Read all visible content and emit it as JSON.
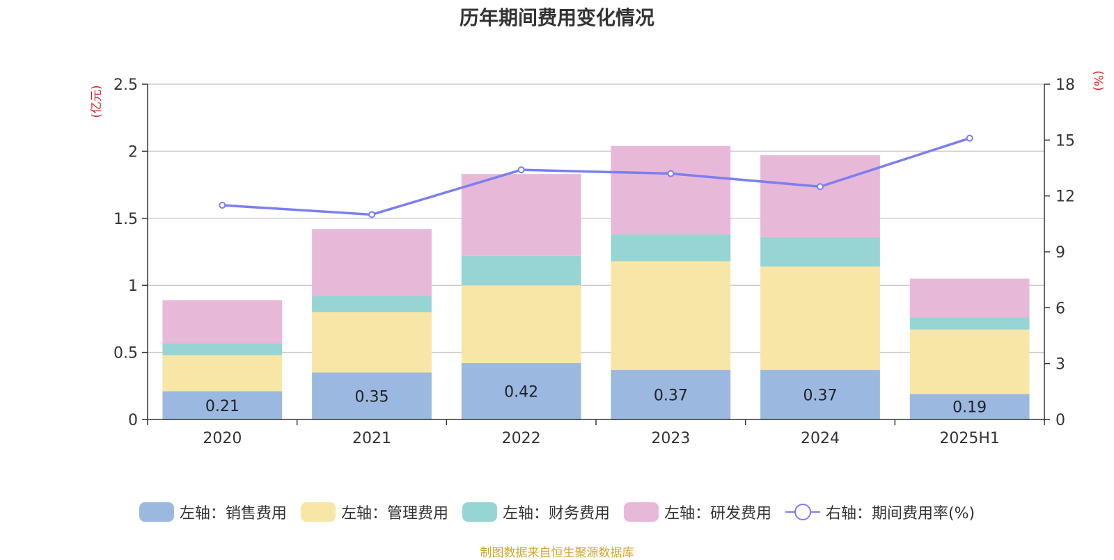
{
  "chart_data": {
    "type": "bar",
    "title": "历年期间费用变化情况",
    "categories": [
      "2020",
      "2021",
      "2022",
      "2023",
      "2024",
      "2025H1"
    ],
    "left_axis": {
      "label": "(亿元)",
      "ylim": [
        0,
        2.5
      ],
      "ticks": [
        "0",
        "0.5",
        "1",
        "1.5",
        "2",
        "2.5"
      ]
    },
    "right_axis": {
      "label": "(%)",
      "ylim": [
        0,
        18
      ],
      "ticks": [
        "0",
        "3",
        "6",
        "9",
        "12",
        "15",
        "18"
      ]
    },
    "series": [
      {
        "name": "左轴：销售费用",
        "type": "bar",
        "stack": "left",
        "color": "#9bb8e0",
        "values": [
          0.21,
          0.35,
          0.42,
          0.37,
          0.37,
          0.19
        ],
        "labels": [
          "0.21",
          "0.35",
          "0.42",
          "0.37",
          "0.37",
          "0.19"
        ]
      },
      {
        "name": "左轴：管理费用",
        "type": "bar",
        "stack": "left",
        "color": "#f7e6a6",
        "values": [
          0.27,
          0.45,
          0.58,
          0.81,
          0.77,
          0.48
        ]
      },
      {
        "name": "左轴：财务费用",
        "type": "bar",
        "stack": "left",
        "color": "#97d4d4",
        "values": [
          0.09,
          0.12,
          0.22,
          0.2,
          0.22,
          0.09
        ]
      },
      {
        "name": "左轴：研发费用",
        "type": "bar",
        "stack": "left",
        "color": "#e8b8d9",
        "values": [
          0.32,
          0.5,
          0.61,
          0.66,
          0.61,
          0.29
        ]
      },
      {
        "name": "右轴：期间费用率(%)",
        "type": "line",
        "axis": "right",
        "color": "#7b7ff0",
        "values": [
          11.5,
          11.0,
          13.4,
          13.2,
          12.5,
          15.1
        ]
      }
    ],
    "grid": true,
    "legend_position": "bottom"
  },
  "source_text": "制图数据来自恒生聚源数据库",
  "colors": {
    "axis_label_red": "#e02020",
    "grid": "#cccccc",
    "source": "#d4a52c"
  }
}
